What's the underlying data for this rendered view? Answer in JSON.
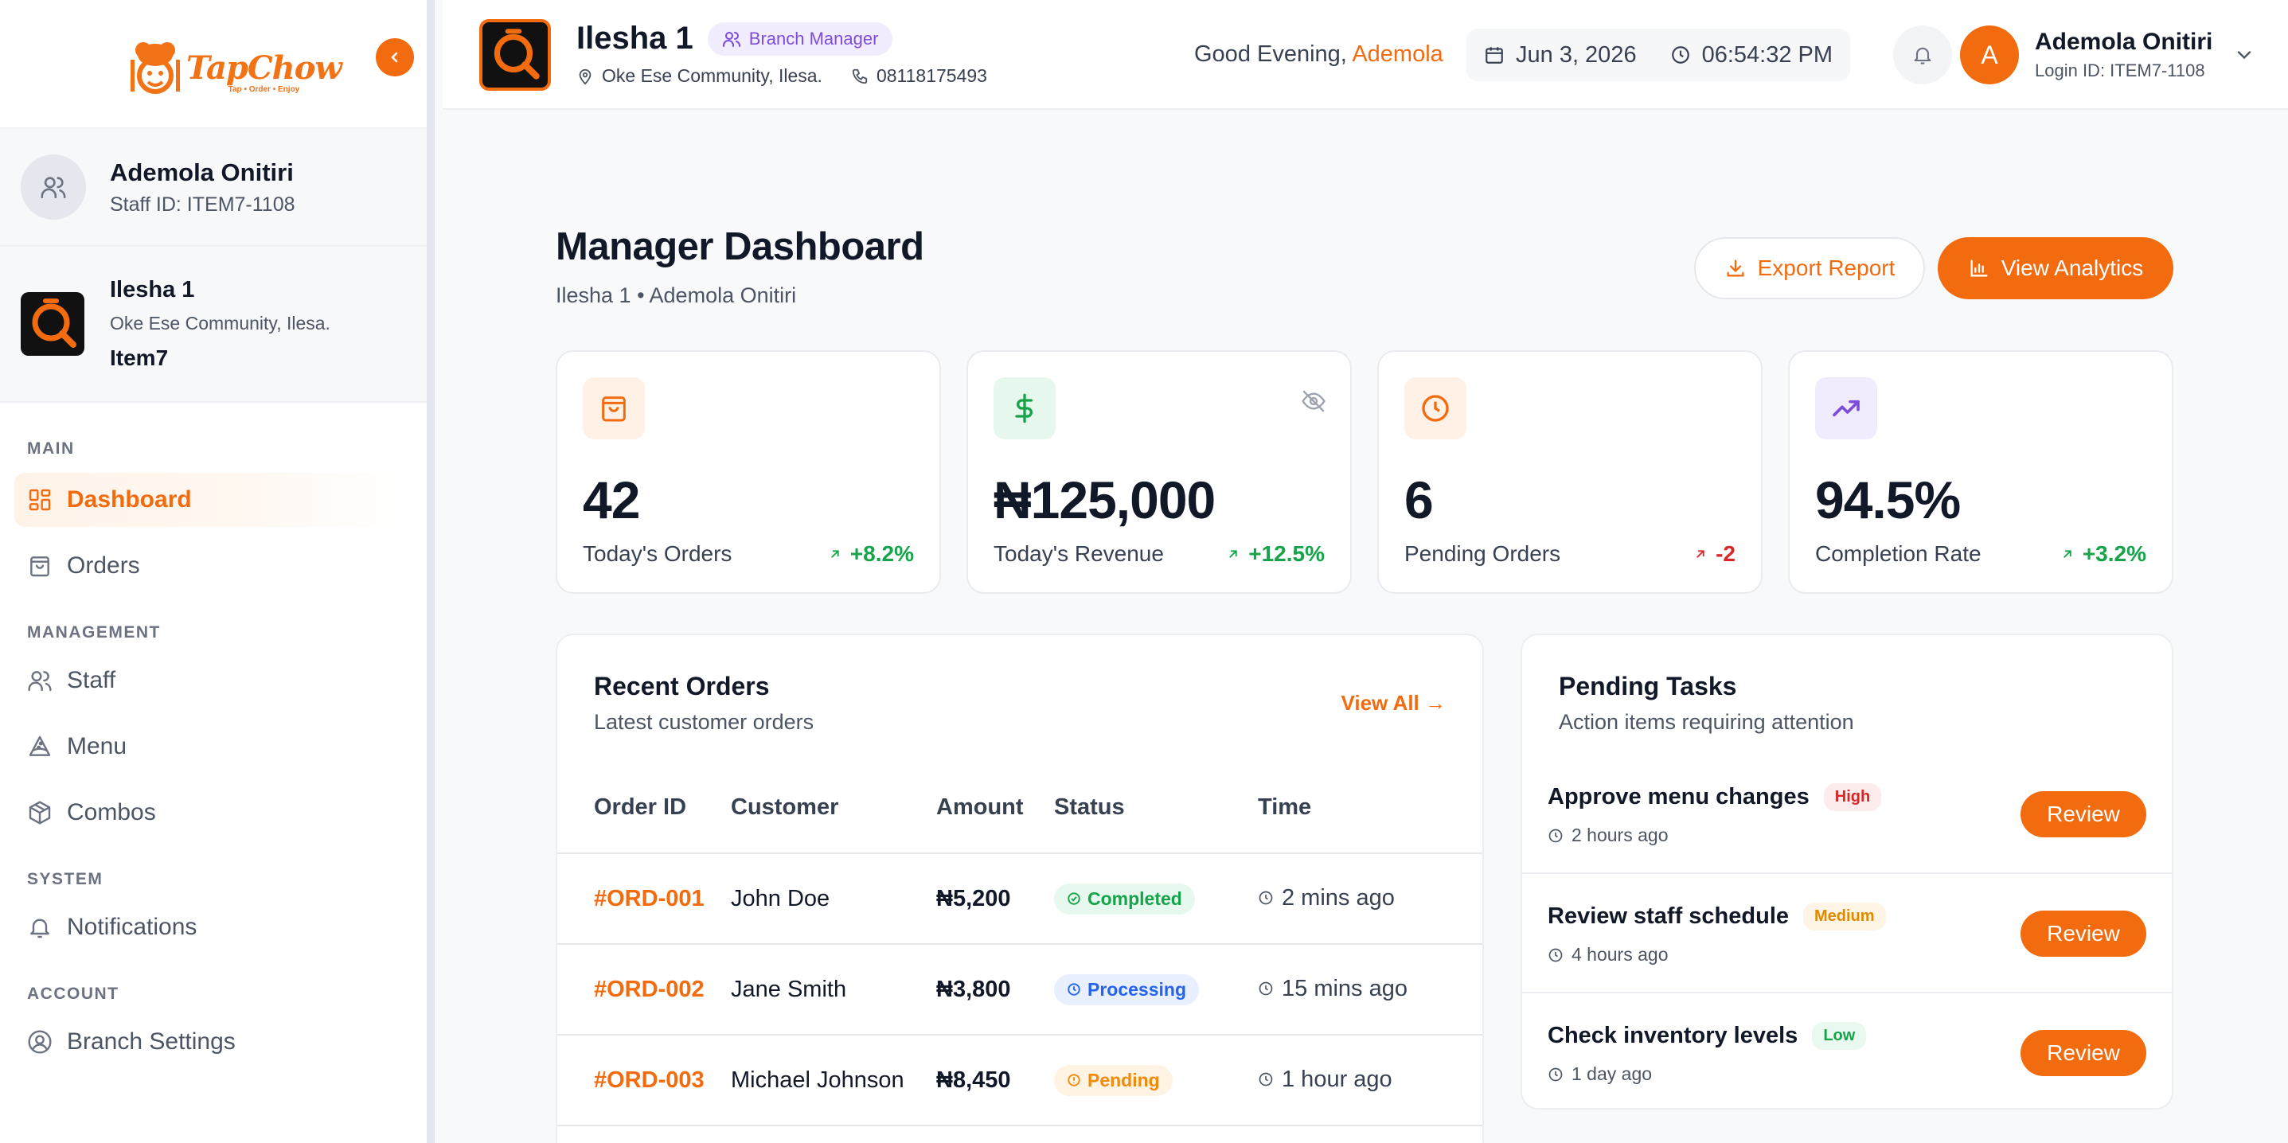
{
  "brand": {
    "name": "TapChow",
    "tagline": "Tap • Order • Enjoy",
    "accent": "#f26b0f"
  },
  "sidebar": {
    "user": {
      "name": "Ademola Onitiri",
      "staff_id": "Staff ID: ITEM7-1108"
    },
    "branch": {
      "name": "Ilesha 1",
      "address": "Oke Ese Community, Ilesa.",
      "code": "Item7"
    },
    "sections": {
      "main": "MAIN",
      "management": "MANAGEMENT",
      "system": "SYSTEM",
      "account": "ACCOUNT"
    },
    "items": {
      "dashboard": "Dashboard",
      "orders": "Orders",
      "staff": "Staff",
      "menu": "Menu",
      "combos": "Combos",
      "notifications": "Notifications",
      "branch_settings": "Branch Settings"
    }
  },
  "topbar": {
    "branch_name": "Ilesha 1",
    "role": "Branch Manager",
    "address": "Oke Ese Community, Ilesa.",
    "phone": "08118175493",
    "greeting_prefix": "Good Evening,",
    "greeting_name": "Ademola",
    "date": "Jun 3, 2026",
    "time": "06:54:32 PM",
    "profile": {
      "initial": "A",
      "name": "Ademola Onitiri",
      "login_id": "Login ID: ITEM7-1108"
    }
  },
  "page": {
    "title": "Manager Dashboard",
    "subtitle": "Ilesha 1 • Ademola Onitiri",
    "export_label": "Export Report",
    "analytics_label": "View Analytics"
  },
  "stats": [
    {
      "value": "42",
      "label": "Today's Orders",
      "change": "+8.2%",
      "icon": "shopping-bag-icon",
      "color": "#f26b0f"
    },
    {
      "value": "₦125,000",
      "label": "Today's Revenue",
      "change": "+12.5%",
      "icon": "dollar-icon",
      "color": "#16a34a"
    },
    {
      "value": "6",
      "label": "Pending Orders",
      "change": "-2",
      "icon": "clock-icon",
      "color": "#f26b0f"
    },
    {
      "value": "94.5%",
      "label": "Completion Rate",
      "change": "+3.2%",
      "icon": "trending-up-icon",
      "color": "#7c4ddb"
    }
  ],
  "recent_orders": {
    "title": "Recent Orders",
    "subtitle": "Latest customer orders",
    "view_all": "View All →",
    "columns": [
      "Order ID",
      "Customer",
      "Amount",
      "Status",
      "Time"
    ],
    "rows": [
      {
        "id": "#ORD-001",
        "customer": "John Doe",
        "amount": "₦5,200",
        "status": "Completed",
        "time": "2 mins ago"
      },
      {
        "id": "#ORD-002",
        "customer": "Jane Smith",
        "amount": "₦3,800",
        "status": "Processing",
        "time": "15 mins ago"
      },
      {
        "id": "#ORD-003",
        "customer": "Michael Johnson",
        "amount": "₦8,450",
        "status": "Pending",
        "time": "1 hour ago"
      }
    ]
  },
  "pending_tasks": {
    "title": "Pending Tasks",
    "subtitle": "Action items requiring attention",
    "review_label": "Review",
    "tasks": [
      {
        "title": "Approve menu changes",
        "priority": "High",
        "time": "2 hours ago"
      },
      {
        "title": "Review staff schedule",
        "priority": "Medium",
        "time": "4 hours ago"
      },
      {
        "title": "Check inventory levels",
        "priority": "Low",
        "time": "1 day ago"
      }
    ]
  }
}
